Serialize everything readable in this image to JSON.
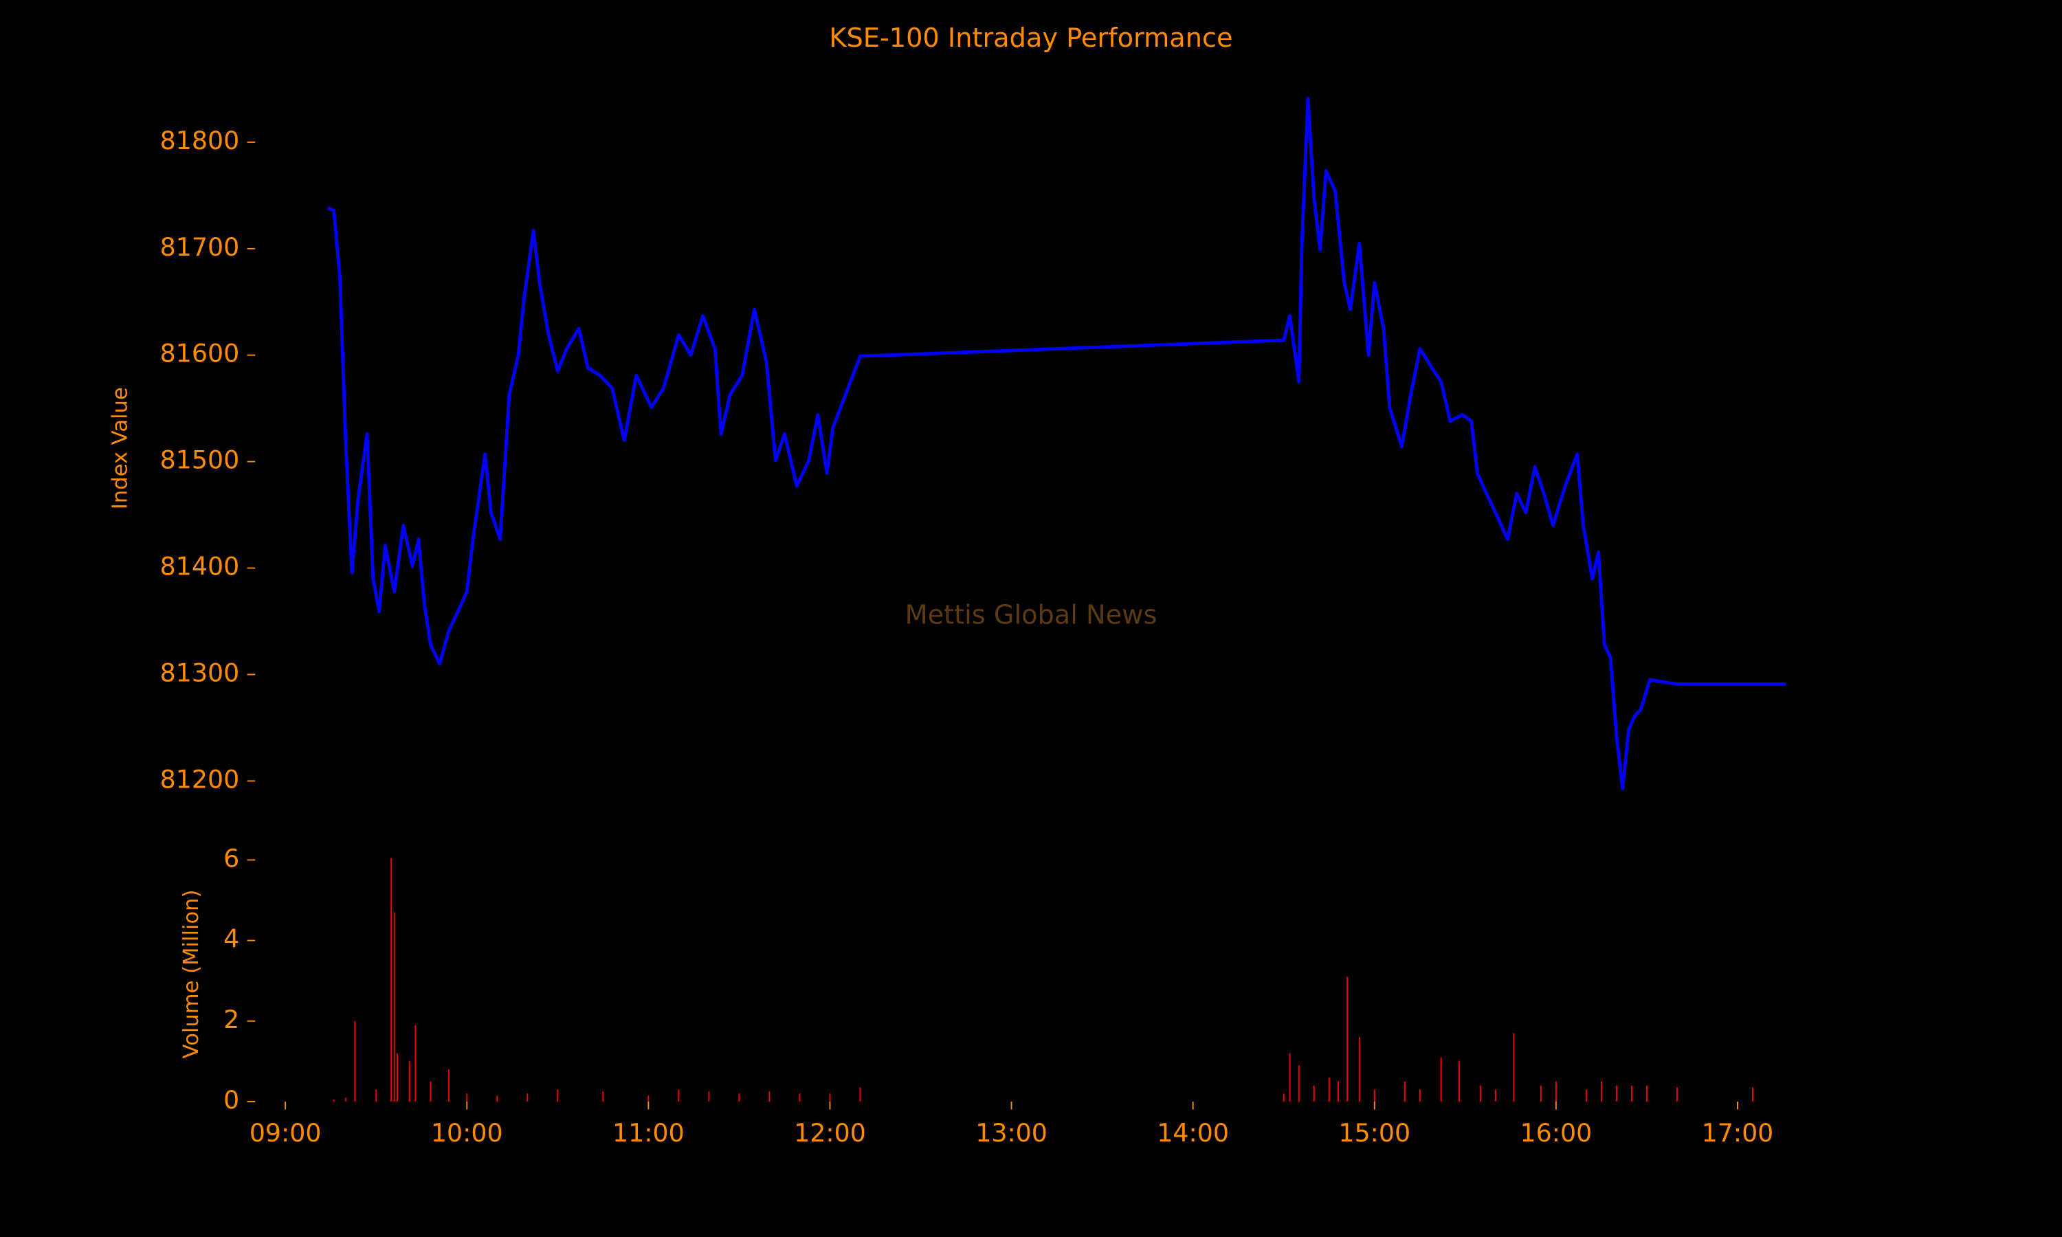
{
  "chart_data": [
    {
      "type": "line",
      "title": "KSE-100 Intraday Performance",
      "annotation": "Mettis Global News",
      "y_label": "Index Value",
      "color": "#0000ff",
      "x": [
        "09:14",
        "09:16",
        "09:18",
        "09:20",
        "09:22",
        "09:24",
        "09:27",
        "09:29",
        "09:31",
        "09:33",
        "09:36",
        "09:39",
        "09:42",
        "09:44",
        "09:46",
        "09:48",
        "09:51",
        "09:54",
        "09:58",
        "10:00",
        "10:02",
        "10:06",
        "10:08",
        "10:11",
        "10:14",
        "10:17",
        "10:19",
        "10:22",
        "10:24",
        "10:27",
        "10:30",
        "10:33",
        "10:37",
        "10:40",
        "10:44",
        "10:48",
        "10:52",
        "10:56",
        "11:01",
        "11:05",
        "11:10",
        "11:14",
        "11:18",
        "11:22",
        "11:24",
        "11:27",
        "11:31",
        "11:35",
        "11:39",
        "11:42",
        "11:45",
        "11:49",
        "11:53",
        "11:56",
        "11:59",
        "12:01",
        "12:10",
        "14:30",
        "14:32",
        "14:35",
        "14:36",
        "14:38",
        "14:40",
        "14:42",
        "14:44",
        "14:47",
        "14:50",
        "14:52",
        "14:55",
        "14:58",
        "15:00",
        "15:03",
        "15:05",
        "15:09",
        "15:12",
        "15:15",
        "15:19",
        "15:22",
        "15:25",
        "15:29",
        "15:32",
        "15:34",
        "15:37",
        "15:40",
        "15:44",
        "15:47",
        "15:50",
        "15:53",
        "15:56",
        "15:59",
        "16:03",
        "16:07",
        "16:09",
        "16:12",
        "16:14",
        "16:16",
        "16:18",
        "16:20",
        "16:22",
        "16:24",
        "16:26",
        "16:28",
        "16:31",
        "16:40",
        "17:16"
      ],
      "values": [
        81738,
        81736,
        81674,
        81514,
        81396,
        81464,
        81526,
        81390,
        81359,
        81421,
        81378,
        81440,
        81402,
        81427,
        81365,
        81328,
        81310,
        81341,
        81365,
        81378,
        81427,
        81507,
        81452,
        81427,
        81563,
        81600,
        81656,
        81717,
        81668,
        81619,
        81585,
        81606,
        81625,
        81588,
        81581,
        81569,
        81520,
        81581,
        81551,
        81569,
        81619,
        81600,
        81637,
        81606,
        81526,
        81563,
        81581,
        81643,
        81594,
        81501,
        81526,
        81477,
        81501,
        81544,
        81489,
        81532,
        81599,
        81614,
        81637,
        81575,
        81705,
        81841,
        81748,
        81699,
        81773,
        81754,
        81668,
        81643,
        81705,
        81600,
        81668,
        81625,
        81551,
        81514,
        81563,
        81606,
        81588,
        81575,
        81538,
        81544,
        81538,
        81489,
        81470,
        81452,
        81427,
        81470,
        81452,
        81495,
        81470,
        81440,
        81477,
        81507,
        81440,
        81390,
        81415,
        81328,
        81316,
        81242,
        81193,
        81248,
        81261,
        81267,
        81295,
        81291,
        81291
      ],
      "xlim": [
        "08:50",
        "17:39"
      ],
      "ylim": [
        81147,
        81878
      ],
      "yticks": [
        81200,
        81300,
        81400,
        81500,
        81600,
        81700,
        81800
      ]
    },
    {
      "type": "bar",
      "y_label": "Volume (Million)",
      "color": "#ff0000",
      "x": [
        "09:16",
        "09:20",
        "09:23",
        "09:30",
        "09:35",
        "09:36",
        "09:37",
        "09:41",
        "09:43",
        "09:48",
        "09:54",
        "10:00",
        "10:10",
        "10:20",
        "10:30",
        "10:45",
        "11:00",
        "11:10",
        "11:20",
        "11:30",
        "11:40",
        "11:50",
        "12:00",
        "12:10",
        "14:30",
        "14:32",
        "14:35",
        "14:40",
        "14:45",
        "14:48",
        "14:51",
        "14:55",
        "15:00",
        "15:10",
        "15:15",
        "15:22",
        "15:28",
        "15:35",
        "15:40",
        "15:46",
        "15:55",
        "16:00",
        "16:10",
        "16:15",
        "16:20",
        "16:25",
        "16:30",
        "16:40",
        "17:05"
      ],
      "values": [
        0.05,
        0.1,
        2.0,
        0.3,
        6.05,
        4.7,
        1.2,
        1.0,
        1.9,
        0.5,
        0.8,
        0.2,
        0.15,
        0.2,
        0.3,
        0.25,
        0.15,
        0.3,
        0.25,
        0.2,
        0.25,
        0.2,
        0.2,
        0.35,
        0.2,
        1.2,
        0.9,
        0.4,
        0.6,
        0.5,
        3.1,
        1.6,
        0.3,
        0.5,
        0.3,
        1.1,
        1.0,
        0.4,
        0.3,
        1.7,
        0.4,
        0.5,
        0.3,
        0.5,
        0.4,
        0.4,
        0.4,
        0.35,
        0.35
      ],
      "xlim": [
        "08:50",
        "17:39"
      ],
      "xticks": [
        "09:00",
        "10:00",
        "11:00",
        "12:00",
        "13:00",
        "14:00",
        "15:00",
        "16:00",
        "17:00"
      ],
      "ylim": [
        0,
        6.3
      ],
      "yticks": [
        0,
        2,
        4,
        6
      ]
    }
  ]
}
